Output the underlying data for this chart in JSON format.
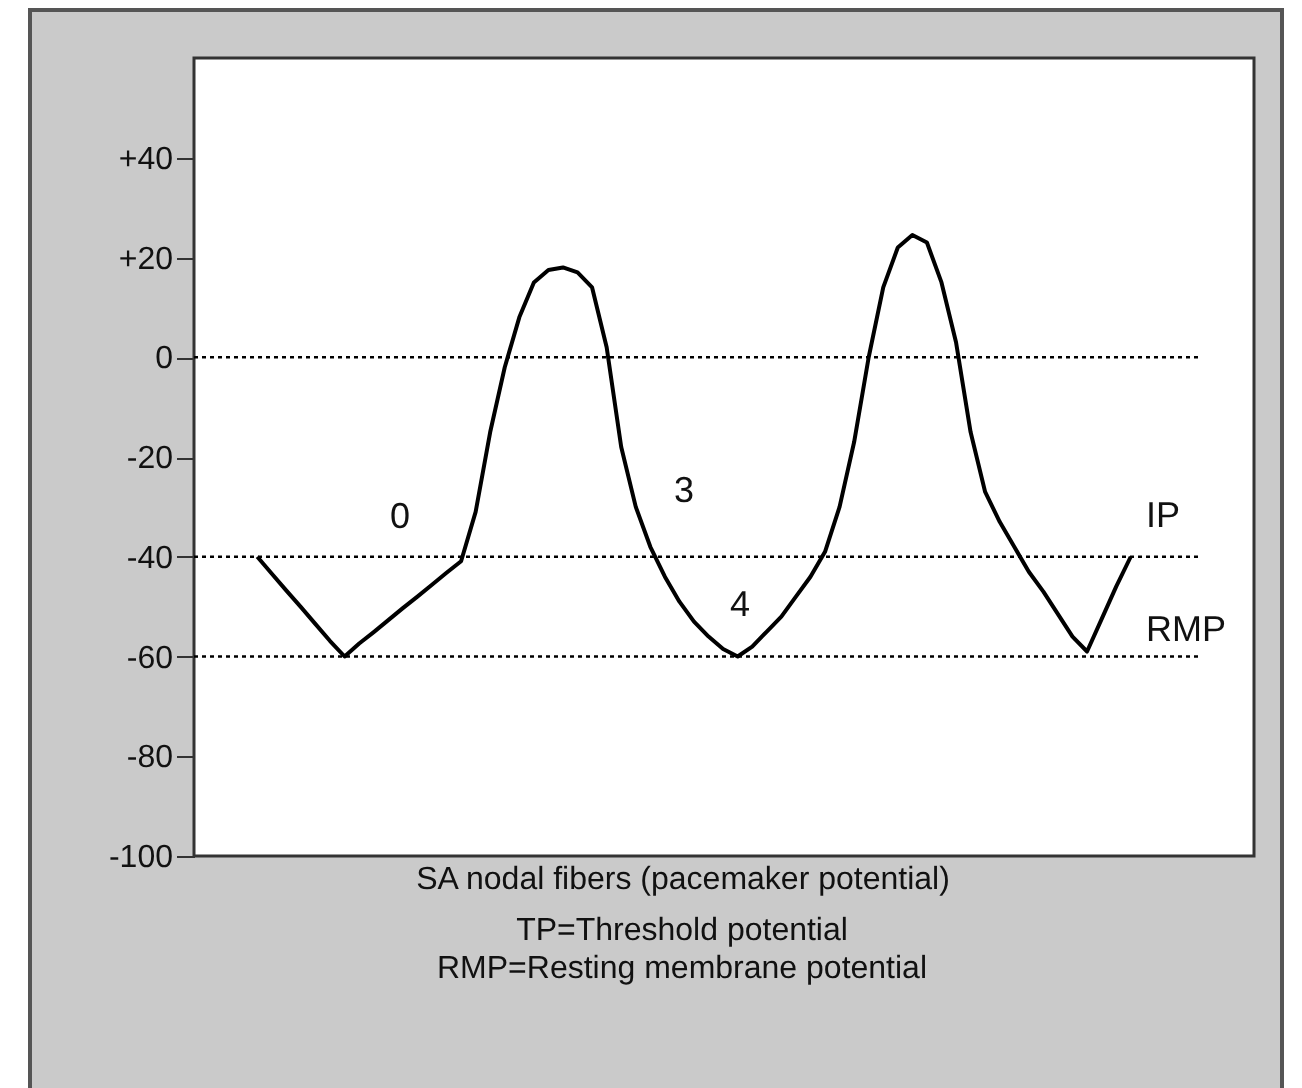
{
  "chart_data": {
    "type": "line",
    "xlabel": "SA nodal fibers (pacemaker potential)",
    "categories": [
      null,
      null,
      null,
      null,
      null,
      null,
      null,
      null,
      null,
      null,
      null,
      null,
      null,
      null,
      null,
      null,
      null,
      null,
      null,
      null,
      null,
      null,
      null,
      null,
      null,
      null,
      null,
      null,
      null,
      null,
      null,
      null,
      null,
      null,
      null,
      null,
      null,
      null,
      null,
      null,
      null,
      null,
      null,
      null,
      null,
      null,
      null,
      null,
      null,
      null,
      null,
      null,
      null,
      null,
      null,
      null,
      null,
      null,
      null,
      null,
      null
    ],
    "series": [
      {
        "color": "#000000",
        "values": [
          -40,
          -43.4,
          -46.8,
          -50.1,
          -53.5,
          -56.9,
          -60,
          -57.4,
          -55.1,
          -52.7,
          -50.3,
          -48,
          -45.6,
          -43.2,
          -40.9,
          -31,
          -15,
          -2,
          8,
          15,
          17.5,
          18,
          17,
          14,
          2,
          -18,
          -30,
          -38,
          -44,
          -49,
          -53,
          -56,
          -58.5,
          -60,
          -58,
          -55,
          -52,
          -48,
          -44,
          -39,
          -30,
          -17,
          0,
          14,
          22,
          24.5,
          23,
          15,
          3,
          -15,
          -27,
          -33,
          -38,
          -43,
          -47,
          -51.5,
          -56,
          -59,
          -52.5,
          -46,
          -40
        ]
      }
    ],
    "ylim": [
      -100,
      60
    ],
    "yticks": [
      {
        "value": 40,
        "label": "+40"
      },
      {
        "value": 20,
        "label": "+20"
      },
      0,
      -20,
      -40,
      -60,
      -80,
      -100
    ],
    "grid": false,
    "line_style": "solid",
    "ref_lines": [
      {
        "axis": "y",
        "value": 0,
        "label": null,
        "color": "#000000",
        "line_style": "dotted"
      },
      {
        "axis": "y",
        "value": -40,
        "label": "IP",
        "color": "#000000",
        "line_style": "dotted"
      },
      {
        "axis": "y",
        "value": -60,
        "label": "RMP",
        "color": "#000000",
        "line_style": "dotted"
      }
    ],
    "annotations": [
      "0",
      "3",
      "4",
      "TP=Threshold potential",
      "RMP=Resting membrane potential"
    ]
  }
}
